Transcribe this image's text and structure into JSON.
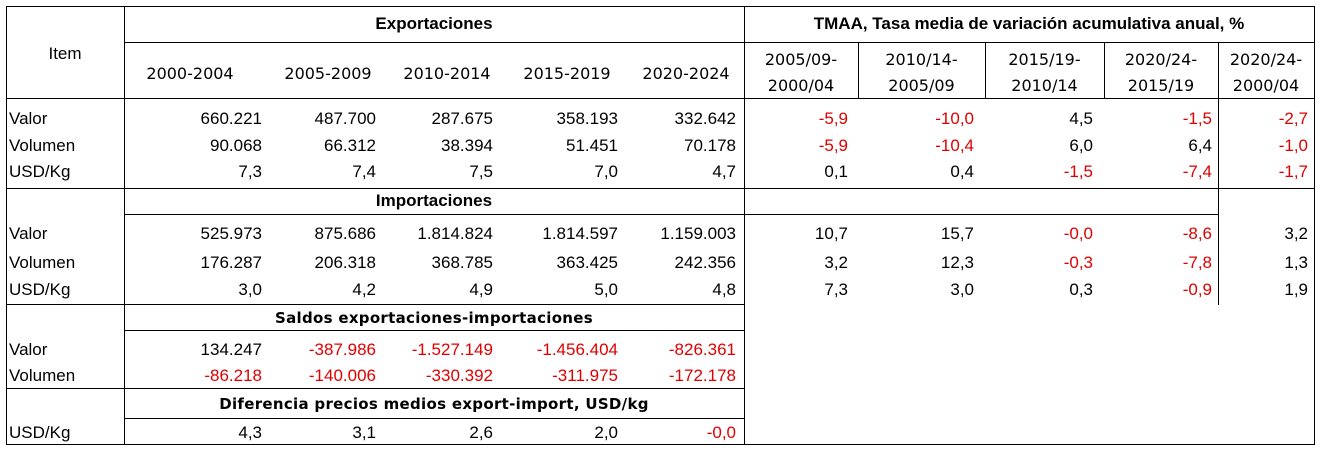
{
  "headers": {
    "item": "Item",
    "exportaciones": "Exportaciones",
    "tmaa": "TMAA, Tasa media de variación acumulativa anual, %",
    "periods": [
      "2000-2004",
      "2005-2009",
      "2010-2014",
      "2015-2019",
      "2020-2024"
    ],
    "tmaa_cols": [
      {
        "top": "2005/09-",
        "bottom": "2000/04"
      },
      {
        "top": "2010/14-",
        "bottom": "2005/09"
      },
      {
        "top": "2015/19-",
        "bottom": "2010/14"
      },
      {
        "top": "2020/24-",
        "bottom": "2015/19"
      },
      {
        "top": "2020/24-",
        "bottom": "2000/04"
      }
    ]
  },
  "sections": {
    "importaciones": "Importaciones",
    "saldos": "Saldos  exportaciones-importaciones",
    "diferencia": "Diferencia  precios  medios  export-import,  USD/kg"
  },
  "exportaciones_rows": [
    {
      "label": "Valor",
      "values": [
        "660.221",
        "487.700",
        "287.675",
        "358.193",
        "332.642"
      ],
      "tmaa": [
        "-5,9",
        "-10,0",
        "4,5",
        "-1,5",
        "-2,7"
      ]
    },
    {
      "label": "Volumen",
      "values": [
        "90.068",
        "66.312",
        "38.394",
        "51.451",
        "70.178"
      ],
      "tmaa": [
        "-5,9",
        "-10,4",
        "6,0",
        "6,4",
        "-1,0"
      ]
    },
    {
      "label": "USD/Kg",
      "values": [
        "7,3",
        "7,4",
        "7,5",
        "7,0",
        "4,7"
      ],
      "tmaa": [
        "0,1",
        "0,4",
        "-1,5",
        "-7,4",
        "-1,7"
      ]
    }
  ],
  "importaciones_rows": [
    {
      "label": "Valor",
      "values": [
        "525.973",
        "875.686",
        "1.814.824",
        "1.814.597",
        "1.159.003"
      ],
      "tmaa": [
        "10,7",
        "15,7",
        "-0,0",
        "-8,6",
        "3,2"
      ]
    },
    {
      "label": "Volumen",
      "values": [
        "176.287",
        "206.318",
        "368.785",
        "363.425",
        "242.356"
      ],
      "tmaa": [
        "3,2",
        "12,3",
        "-0,3",
        "-7,8",
        "1,3"
      ]
    },
    {
      "label": "USD/Kg",
      "values": [
        "3,0",
        "4,2",
        "4,9",
        "5,0",
        "4,8"
      ],
      "tmaa": [
        "7,3",
        "3,0",
        "0,3",
        "-0,9",
        "1,9"
      ]
    }
  ],
  "saldos_rows": [
    {
      "label": "Valor",
      "values": [
        "134.247",
        "-387.986",
        "-1.527.149",
        "-1.456.404",
        "-826.361"
      ]
    },
    {
      "label": "Volumen",
      "values": [
        "-86.218",
        "-140.006",
        "-330.392",
        "-311.975",
        "-172.178"
      ]
    }
  ],
  "diferencia_rows": [
    {
      "label": "USD/Kg",
      "values": [
        "4,3",
        "3,1",
        "2,6",
        "2,0",
        "-0,0"
      ]
    }
  ]
}
